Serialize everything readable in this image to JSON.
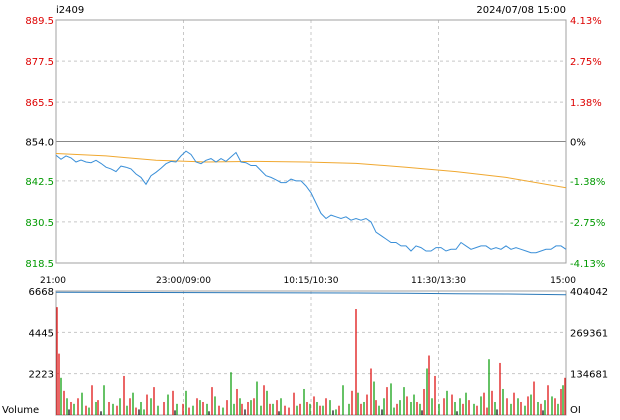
{
  "header": {
    "symbol": "i2409",
    "datetime": "2024/07/08 15:00"
  },
  "colors": {
    "price_line": "#3a8fd8",
    "avg_line": "#f0a830",
    "oi_line": "#2a78b8",
    "up": "#dd0000",
    "down": "#009900",
    "neutral": "#000000",
    "grid": "#c8c8c8",
    "border": "#a0a0a0"
  },
  "chart_data": [
    {
      "type": "line",
      "reference_price": 854.0,
      "ylim": [
        818.5,
        889.5
      ],
      "y_ticks_left": [
        "889.5",
        "877.5",
        "865.5",
        "854.0",
        "842.5",
        "830.5",
        "818.5"
      ],
      "y_ticks_right": [
        "4.13%",
        "2.75%",
        "1.38%",
        "0%",
        "-1.38%",
        "-2.75%",
        "-4.13%"
      ],
      "x_tick_labels": [
        "21:00",
        "23:00/09:00",
        "10:15/10:30",
        "11:30/13:30",
        "15:00"
      ],
      "series": [
        {
          "key": "price",
          "x": [
            0,
            5,
            10,
            15,
            20,
            25,
            30,
            35,
            40,
            45,
            50,
            55,
            60,
            65,
            70,
            75,
            80,
            85,
            90,
            95,
            100,
            105,
            110,
            115,
            120,
            125,
            130,
            135,
            140,
            145,
            150,
            155,
            160,
            165,
            170,
            175,
            180,
            185,
            190,
            195,
            200,
            205,
            210,
            215,
            220,
            225,
            230,
            235,
            240,
            245,
            250,
            255,
            260,
            265,
            270,
            275,
            280,
            285,
            290,
            295,
            300,
            305,
            310,
            315,
            320,
            325,
            330,
            335,
            340,
            345,
            350,
            355,
            360,
            365,
            370,
            375,
            380,
            385,
            390,
            395,
            400,
            405,
            410,
            415,
            420,
            425,
            430,
            435,
            440,
            445,
            450,
            455,
            460,
            465,
            470,
            475,
            480,
            485,
            490,
            495,
            500,
            505,
            510
          ],
          "y": [
            850.0,
            848.8,
            849.8,
            849.2,
            848.0,
            848.6,
            848.0,
            847.8,
            848.5,
            847.6,
            846.5,
            846.0,
            845.2,
            846.8,
            846.5,
            846.0,
            844.5,
            843.5,
            841.5,
            844.0,
            845.0,
            846.2,
            847.5,
            848.2,
            848.0,
            849.8,
            851.2,
            850.2,
            848.0,
            847.5,
            848.5,
            849.0,
            848.0,
            849.0,
            848.2,
            849.5,
            850.8,
            848.0,
            847.8,
            847.0,
            847.0,
            845.5,
            844.0,
            843.5,
            842.8,
            842.0,
            842.0,
            843.0,
            842.5,
            842.5,
            841.0,
            839.0,
            836.0,
            833.0,
            831.5,
            832.5,
            832.0,
            831.5,
            832.0,
            831.0,
            831.5,
            831.0,
            831.5,
            830.5,
            827.5,
            826.5,
            825.5,
            824.5,
            824.5,
            823.5,
            823.5,
            822.0,
            823.5,
            823.0,
            822.0,
            822.0,
            823.0,
            823.0,
            822.0,
            822.5,
            822.5,
            824.5,
            823.5,
            822.5,
            823.0,
            823.5,
            823.5,
            822.5,
            823.0,
            822.5,
            823.5,
            822.5,
            823.0,
            822.5,
            822.0,
            821.5,
            821.5,
            822.0,
            822.5,
            822.5,
            823.5,
            823.5,
            822.5
          ]
        },
        {
          "key": "average",
          "x": [
            0,
            50,
            100,
            150,
            200,
            250,
            300,
            350,
            400,
            450,
            510
          ],
          "y": [
            850.5,
            849.8,
            848.5,
            848.0,
            848.2,
            848.0,
            847.6,
            846.5,
            845.2,
            843.5,
            840.5
          ]
        }
      ]
    },
    {
      "type": "bar",
      "volume_label": "Volume",
      "oi_label": "OI",
      "ylim": [
        0,
        6668
      ],
      "y_ticks_left": [
        "6668",
        "4445",
        "2223"
      ],
      "y_ticks_right": [
        "404042",
        "269361",
        "134681"
      ],
      "oi_ylim": [
        0,
        404042
      ],
      "oi_series": {
        "x": [
          0,
          50,
          100,
          150,
          200,
          250,
          300,
          350,
          400,
          450,
          510
        ],
        "values": [
          400000,
          399500,
          399200,
          398900,
          398500,
          398000,
          397500,
          396500,
          395300,
          394200,
          392000
        ]
      },
      "volume_series": {
        "up": [
          [
            1,
            5800
          ],
          [
            3,
            3300
          ],
          [
            8,
            1300
          ],
          [
            15,
            700
          ],
          [
            22,
            900
          ],
          [
            30,
            500
          ],
          [
            36,
            1600
          ],
          [
            42,
            800
          ],
          [
            53,
            700
          ],
          [
            61,
            500
          ],
          [
            68,
            2100
          ],
          [
            74,
            900
          ],
          [
            80,
            400
          ],
          [
            91,
            1100
          ],
          [
            98,
            1500
          ],
          [
            108,
            700
          ],
          [
            117,
            1300
          ],
          [
            127,
            600
          ],
          [
            133,
            400
          ],
          [
            141,
            900
          ],
          [
            147,
            700
          ],
          [
            156,
            1500
          ],
          [
            163,
            500
          ],
          [
            171,
            800
          ],
          [
            181,
            1400
          ],
          [
            186,
            600
          ],
          [
            192,
            700
          ],
          [
            198,
            900
          ],
          [
            208,
            1600
          ],
          [
            214,
            600
          ],
          [
            221,
            800
          ],
          [
            229,
            500
          ],
          [
            233,
            400
          ],
          [
            238,
            1200
          ],
          [
            244,
            600
          ],
          [
            251,
            700
          ],
          [
            258,
            1000
          ],
          [
            264,
            500
          ],
          [
            270,
            900
          ],
          [
            283,
            500
          ],
          [
            296,
            1300
          ],
          [
            300,
            5700
          ],
          [
            305,
            600
          ],
          [
            311,
            1100
          ],
          [
            315,
            2500
          ],
          [
            320,
            800
          ],
          [
            331,
            1500
          ],
          [
            341,
            600
          ],
          [
            351,
            1000
          ],
          [
            361,
            700
          ],
          [
            368,
            1400
          ],
          [
            373,
            3200
          ],
          [
            379,
            2100
          ],
          [
            388,
            900
          ],
          [
            396,
            1100
          ],
          [
            407,
            600
          ],
          [
            413,
            800
          ],
          [
            421,
            500
          ],
          [
            428,
            1200
          ],
          [
            431,
            400
          ],
          [
            436,
            1300
          ],
          [
            444,
            2800
          ],
          [
            451,
            900
          ],
          [
            458,
            1200
          ],
          [
            465,
            700
          ],
          [
            472,
            1000
          ],
          [
            478,
            1800
          ],
          [
            485,
            600
          ],
          [
            492,
            1600
          ],
          [
            499,
            900
          ],
          [
            505,
            1400
          ],
          [
            509,
            2000
          ]
        ],
        "down": [
          [
            5,
            2000
          ],
          [
            11,
            900
          ],
          [
            18,
            600
          ],
          [
            26,
            1200
          ],
          [
            33,
            400
          ],
          [
            40,
            700
          ],
          [
            48,
            1600
          ],
          [
            57,
            600
          ],
          [
            64,
            900
          ],
          [
            71,
            500
          ],
          [
            77,
            1200
          ],
          [
            85,
            700
          ],
          [
            88,
            300
          ],
          [
            95,
            900
          ],
          [
            102,
            500
          ],
          [
            112,
            1100
          ],
          [
            121,
            600
          ],
          [
            130,
            1300
          ],
          [
            137,
            500
          ],
          [
            144,
            800
          ],
          [
            151,
            600
          ],
          [
            159,
            1000
          ],
          [
            167,
            400
          ],
          [
            175,
            2300
          ],
          [
            178,
            600
          ],
          [
            184,
            900
          ],
          [
            195,
            800
          ],
          [
            201,
            1800
          ],
          [
            205,
            500
          ],
          [
            211,
            1300
          ],
          [
            217,
            600
          ],
          [
            225,
            900
          ],
          [
            241,
            500
          ],
          [
            248,
            1400
          ],
          [
            254,
            600
          ],
          [
            261,
            700
          ],
          [
            267,
            500
          ],
          [
            274,
            800
          ],
          [
            280,
            300
          ],
          [
            287,
            1600
          ],
          [
            293,
            600
          ],
          [
            302,
            1200
          ],
          [
            308,
            700
          ],
          [
            318,
            1800
          ],
          [
            323,
            500
          ],
          [
            328,
            900
          ],
          [
            335,
            1700
          ],
          [
            338,
            400
          ],
          [
            344,
            800
          ],
          [
            348,
            1500
          ],
          [
            355,
            700
          ],
          [
            358,
            1100
          ],
          [
            364,
            600
          ],
          [
            371,
            2500
          ],
          [
            376,
            900
          ],
          [
            383,
            600
          ],
          [
            391,
            1300
          ],
          [
            399,
            700
          ],
          [
            404,
            900
          ],
          [
            410,
            1200
          ],
          [
            418,
            600
          ],
          [
            425,
            1000
          ],
          [
            433,
            3000
          ],
          [
            439,
            700
          ],
          [
            447,
            1400
          ],
          [
            455,
            600
          ],
          [
            462,
            900
          ],
          [
            469,
            500
          ],
          [
            475,
            1100
          ],
          [
            482,
            700
          ],
          [
            489,
            800
          ],
          [
            496,
            1000
          ],
          [
            502,
            600
          ],
          [
            507,
            1600
          ]
        ],
        "flat": [
          [
            13,
            300
          ],
          [
            45,
            200
          ],
          [
            83,
            300
          ],
          [
            119,
            250
          ],
          [
            153,
            200
          ],
          [
            189,
            300
          ],
          [
            223,
            200
          ],
          [
            277,
            250
          ],
          [
            326,
            300
          ],
          [
            366,
            250
          ],
          [
            401,
            200
          ],
          [
            441,
            300
          ],
          [
            487,
            250
          ]
        ]
      }
    }
  ]
}
